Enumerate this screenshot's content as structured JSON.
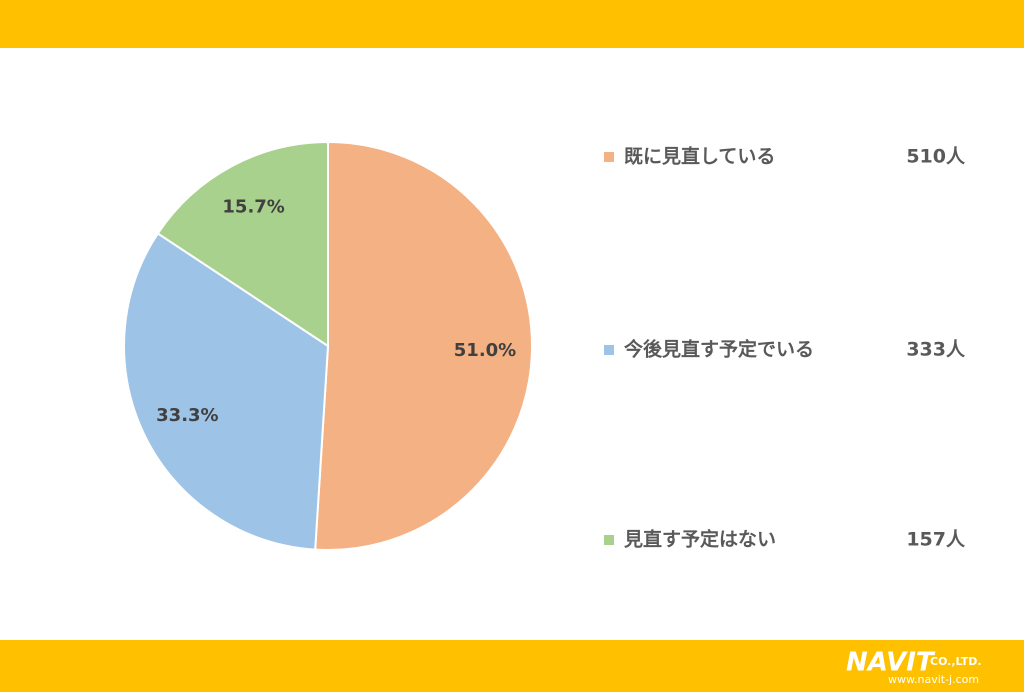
{
  "chart_data": {
    "type": "pie",
    "categories": [
      "既に見直している",
      "今後見直す予定でいる",
      "見直す予定はない"
    ],
    "values": [
      51.0,
      33.3,
      15.7
    ],
    "value_labels": [
      "51.0%",
      "33.3%",
      "15.7%"
    ],
    "colors": [
      "#F4B183",
      "#9DC3E6",
      "#A9D18E"
    ],
    "counts": [
      {
        "value": 510,
        "label": "510人"
      },
      {
        "value": 333,
        "label": "333人"
      },
      {
        "value": 157,
        "label": "157人"
      }
    ]
  },
  "footer": {
    "logo": "NAVIT",
    "company": "CO.,LTD.",
    "url": "www.navit-j.com"
  }
}
